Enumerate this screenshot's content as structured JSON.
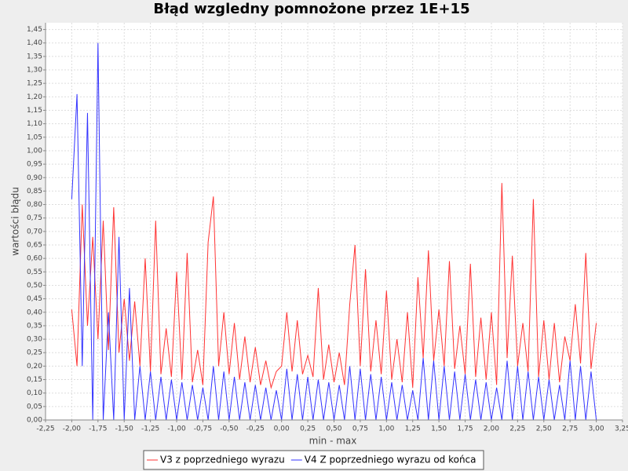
{
  "chart_data": {
    "type": "line",
    "title": "Błąd wzgledny  pomnożone przez 1E+15",
    "x_label": "min - max",
    "y_label": "wartości błądu",
    "grid": true,
    "legend": "bottom",
    "x": [
      -2.0,
      -1.95,
      -1.9,
      -1.85,
      -1.8,
      -1.75,
      -1.7,
      -1.65,
      -1.6,
      -1.55,
      -1.5,
      -1.45,
      -1.4,
      -1.35,
      -1.3,
      -1.25,
      -1.2,
      -1.15,
      -1.1,
      -1.05,
      -1.0,
      -0.95,
      -0.9,
      -0.85,
      -0.8,
      -0.75,
      -0.7,
      -0.65,
      -0.6,
      -0.55,
      -0.5,
      -0.45,
      -0.4,
      -0.35,
      -0.3,
      -0.25,
      -0.2,
      -0.15,
      -0.1,
      -0.05,
      0.0,
      0.05,
      0.1,
      0.15,
      0.2,
      0.25,
      0.3,
      0.35,
      0.4,
      0.45,
      0.5,
      0.55,
      0.6,
      0.65,
      0.7,
      0.75,
      0.8,
      0.85,
      0.9,
      0.95,
      1.0,
      1.05,
      1.1,
      1.15,
      1.2,
      1.25,
      1.3,
      1.35,
      1.4,
      1.45,
      1.5,
      1.55,
      1.6,
      1.65,
      1.7,
      1.75,
      1.8,
      1.85,
      1.9,
      1.95,
      2.0,
      2.05,
      2.1,
      2.15,
      2.2,
      2.25,
      2.3,
      2.35,
      2.4,
      2.45,
      2.5,
      2.55,
      2.6,
      2.65,
      2.7,
      2.75,
      2.8,
      2.85,
      2.9,
      2.95,
      3.0
    ],
    "series": [
      {
        "name": "V3 z poprzedniego wyrazu",
        "color": "#ff3333",
        "values": [
          0.41,
          0.2,
          0.8,
          0.35,
          0.68,
          0.3,
          0.74,
          0.26,
          0.79,
          0.25,
          0.45,
          0.22,
          0.44,
          0.2,
          0.6,
          0.18,
          0.74,
          0.17,
          0.34,
          0.16,
          0.55,
          0.15,
          0.62,
          0.14,
          0.26,
          0.13,
          0.66,
          0.83,
          0.2,
          0.4,
          0.17,
          0.36,
          0.15,
          0.31,
          0.14,
          0.27,
          0.13,
          0.22,
          0.12,
          0.18,
          0.2,
          0.4,
          0.18,
          0.37,
          0.17,
          0.24,
          0.16,
          0.49,
          0.15,
          0.28,
          0.14,
          0.25,
          0.13,
          0.43,
          0.65,
          0.2,
          0.56,
          0.18,
          0.37,
          0.17,
          0.48,
          0.15,
          0.3,
          0.14,
          0.4,
          0.12,
          0.53,
          0.23,
          0.63,
          0.22,
          0.41,
          0.2,
          0.59,
          0.19,
          0.35,
          0.17,
          0.58,
          0.16,
          0.38,
          0.15,
          0.4,
          0.13,
          0.88,
          0.23,
          0.61,
          0.2,
          0.36,
          0.18,
          0.82,
          0.16,
          0.37,
          0.15,
          0.36,
          0.14,
          0.31,
          0.22,
          0.43,
          0.21,
          0.62,
          0.19,
          0.36
        ]
      },
      {
        "name": "V4 Z poprzedniego wyrazu od końca",
        "color": "#3333ff",
        "values": [
          0.82,
          1.21,
          0.2,
          1.14,
          0,
          1.4,
          0,
          0.4,
          0,
          0.68,
          0,
          0.49,
          0,
          0.2,
          0,
          0.18,
          0,
          0.16,
          0,
          0.15,
          0,
          0.14,
          0,
          0.13,
          0,
          0.12,
          0,
          0.2,
          0,
          0.18,
          0,
          0.16,
          0,
          0.14,
          0,
          0.13,
          0,
          0.12,
          0,
          0.11,
          0,
          0.19,
          0,
          0.17,
          0,
          0.16,
          0,
          0.15,
          0,
          0.14,
          0,
          0.13,
          0,
          0.2,
          0,
          0.19,
          0,
          0.17,
          0,
          0.16,
          0,
          0.14,
          0,
          0.13,
          0,
          0.11,
          0,
          0.23,
          0,
          0.22,
          0,
          0.2,
          0,
          0.18,
          0,
          0.17,
          0,
          0.15,
          0,
          0.14,
          0,
          0.12,
          0,
          0.22,
          0,
          0.2,
          0,
          0.18,
          0,
          0.16,
          0,
          0.15,
          0,
          0.13,
          0,
          0.22,
          0,
          0.2,
          0,
          0.18,
          0
        ]
      }
    ],
    "xlim": [
      -2.25,
      3.25
    ],
    "xticks": [
      {
        "value": -2.25,
        "label": "-2,25"
      },
      {
        "value": -2.0,
        "label": "-2,00"
      },
      {
        "value": -1.75,
        "label": "-1,75"
      },
      {
        "value": -1.5,
        "label": "-1,50"
      },
      {
        "value": -1.25,
        "label": "-1,25"
      },
      {
        "value": -1.0,
        "label": "-1,00"
      },
      {
        "value": -0.75,
        "label": "-0,75"
      },
      {
        "value": -0.5,
        "label": "-0,50"
      },
      {
        "value": -0.25,
        "label": "-0,25"
      },
      {
        "value": 0.0,
        "label": "0,00"
      },
      {
        "value": 0.25,
        "label": "0,25"
      },
      {
        "value": 0.5,
        "label": "0,50"
      },
      {
        "value": 0.75,
        "label": "0,75"
      },
      {
        "value": 1.0,
        "label": "1,00"
      },
      {
        "value": 1.25,
        "label": "1,25"
      },
      {
        "value": 1.5,
        "label": "1,50"
      },
      {
        "value": 1.75,
        "label": "1,75"
      },
      {
        "value": 2.0,
        "label": "2,00"
      },
      {
        "value": 2.25,
        "label": "2,25"
      },
      {
        "value": 2.5,
        "label": "2,50"
      },
      {
        "value": 2.75,
        "label": "2,75"
      },
      {
        "value": 3.0,
        "label": "3,00"
      },
      {
        "value": 3.25,
        "label": "3,25"
      }
    ],
    "ylim": [
      0,
      1.475
    ],
    "yticks": [
      {
        "value": 0.0,
        "label": "0,00"
      },
      {
        "value": 0.05,
        "label": "0,05"
      },
      {
        "value": 0.1,
        "label": "0,10"
      },
      {
        "value": 0.15,
        "label": "0,15"
      },
      {
        "value": 0.2,
        "label": "0,20"
      },
      {
        "value": 0.25,
        "label": "0,25"
      },
      {
        "value": 0.3,
        "label": "0,30"
      },
      {
        "value": 0.35,
        "label": "0,35"
      },
      {
        "value": 0.4,
        "label": "0,40"
      },
      {
        "value": 0.45,
        "label": "0,45"
      },
      {
        "value": 0.5,
        "label": "0,50"
      },
      {
        "value": 0.55,
        "label": "0,55"
      },
      {
        "value": 0.6,
        "label": "0,60"
      },
      {
        "value": 0.65,
        "label": "0,65"
      },
      {
        "value": 0.7,
        "label": "0,70"
      },
      {
        "value": 0.75,
        "label": "0,75"
      },
      {
        "value": 0.8,
        "label": "0,80"
      },
      {
        "value": 0.85,
        "label": "0,85"
      },
      {
        "value": 0.9,
        "label": "0,90"
      },
      {
        "value": 0.95,
        "label": "0,95"
      },
      {
        "value": 1.0,
        "label": "1,00"
      },
      {
        "value": 1.05,
        "label": "1,05"
      },
      {
        "value": 1.1,
        "label": "1,10"
      },
      {
        "value": 1.15,
        "label": "1,15"
      },
      {
        "value": 1.2,
        "label": "1,20"
      },
      {
        "value": 1.25,
        "label": "1,25"
      },
      {
        "value": 1.3,
        "label": "1,30"
      },
      {
        "value": 1.35,
        "label": "1,35"
      },
      {
        "value": 1.4,
        "label": "1,40"
      },
      {
        "value": 1.45,
        "label": "1,45"
      }
    ]
  }
}
